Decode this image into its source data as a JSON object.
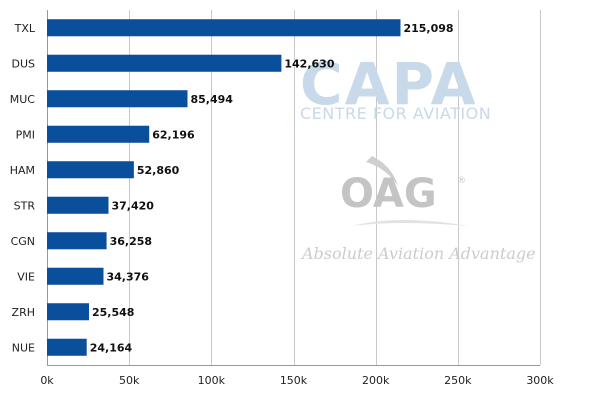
{
  "chart_data": {
    "type": "bar",
    "orientation": "horizontal",
    "categories": [
      "TXL",
      "DUS",
      "MUC",
      "PMI",
      "HAM",
      "STR",
      "CGN",
      "VIE",
      "ZRH",
      "NUE"
    ],
    "values": [
      215098,
      142630,
      85494,
      62196,
      52860,
      37420,
      36258,
      34376,
      25548,
      24164
    ],
    "data_labels": [
      "215,098",
      "142,630",
      "85,494",
      "62,196",
      "52,860",
      "37,420",
      "36,258",
      "34,376",
      "25,548",
      "24,164"
    ],
    "x_ticks": [
      0,
      50000,
      100000,
      150000,
      200000,
      250000,
      300000
    ],
    "x_tick_labels": [
      "0k",
      "50k",
      "100k",
      "150k",
      "200k",
      "250k",
      "300k"
    ],
    "xlim": [
      0,
      300000
    ],
    "grid": true,
    "legend": "none",
    "bar_color": "#0a4f9c",
    "title": "",
    "xlabel": "",
    "ylabel": ""
  },
  "watermarks": {
    "capa_logo": "CAPA",
    "capa_tagline": "CENTRE FOR AVIATION",
    "oag_logo": "OAG",
    "oag_registered": "®",
    "oag_tagline": "Absolute Aviation Advantage"
  }
}
